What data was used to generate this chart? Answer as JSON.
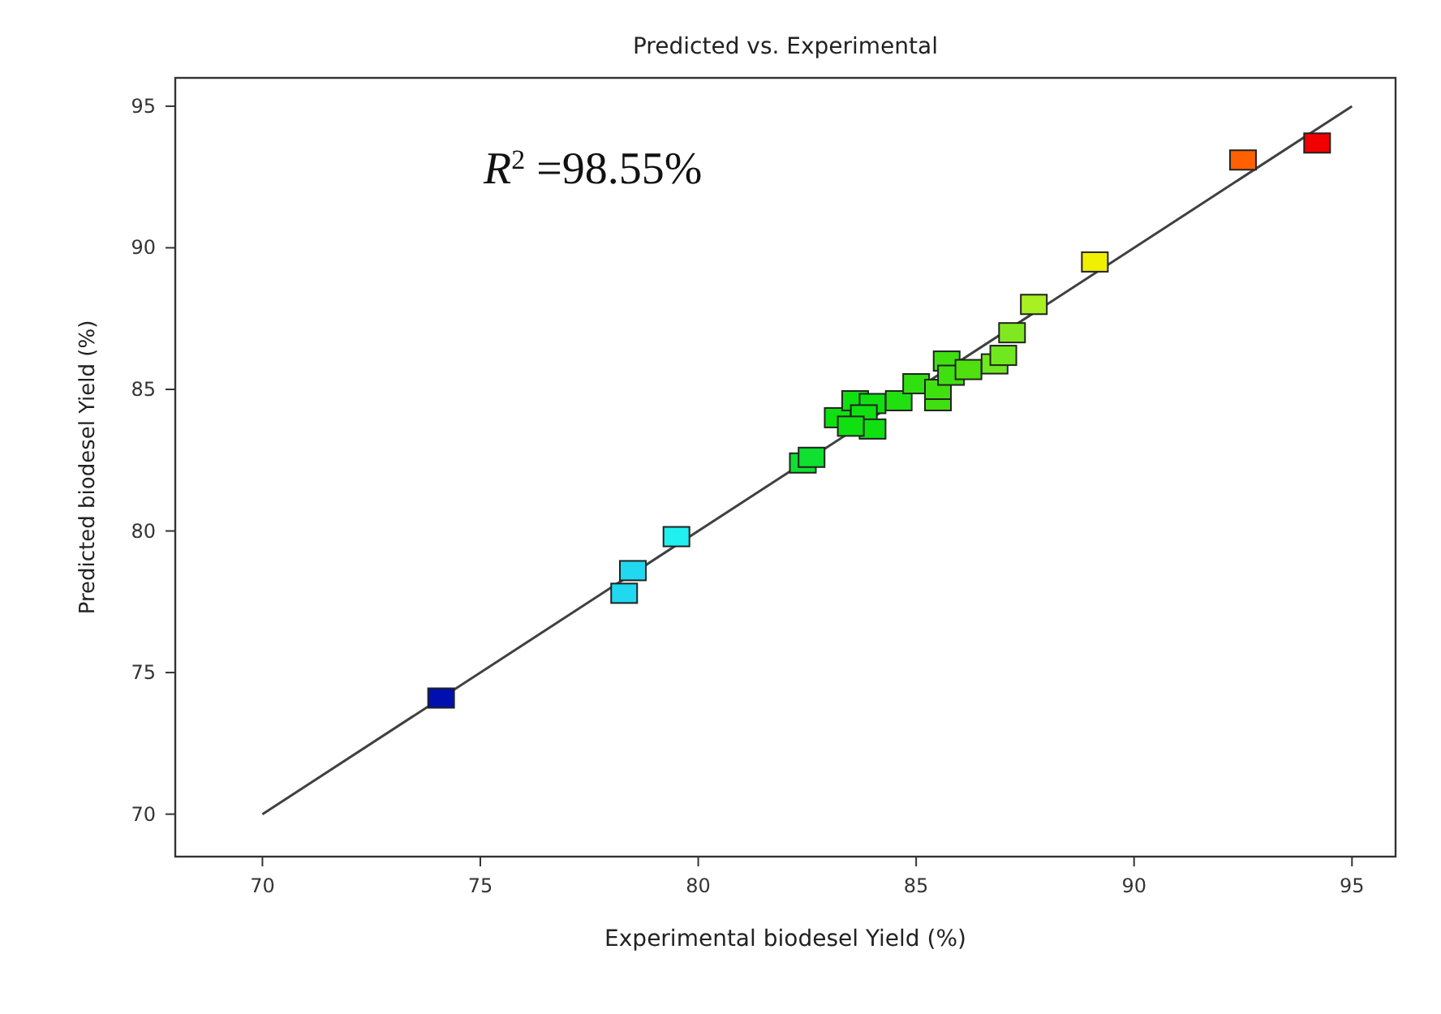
{
  "chart_data": {
    "type": "scatter",
    "title": "Predicted vs. Experimental",
    "xlabel": "Experimental biodesel Yield (%)",
    "ylabel": "Predicted biodesel Yield (%)",
    "annotations": [
      "R$^{2}$ =98.55%"
    ],
    "xlim": [
      68,
      96
    ],
    "ylim": [
      68.5,
      96
    ],
    "xticks": [
      70,
      75,
      80,
      85,
      90,
      95
    ],
    "yticks": [
      70,
      75,
      80,
      85,
      90,
      95
    ],
    "grid": false,
    "marker": "square",
    "series": [
      {
        "type": "line",
        "color": "#404040",
        "x": [
          70,
          95
        ],
        "values": [
          70,
          95
        ],
        "marker": "none",
        "line_style": "solid"
      },
      {
        "x": [
          74.1,
          78.3,
          78.5,
          79.5,
          82.4,
          82.6,
          83.2,
          83.6,
          84.0,
          83.8,
          84.0,
          83.5,
          84.6,
          85.0,
          85.5,
          85.5,
          85.7,
          85.8,
          86.2,
          86.8,
          87.0,
          87.2,
          87.7,
          89.1,
          92.5,
          94.2
        ],
        "values": [
          74.1,
          77.8,
          78.6,
          79.8,
          82.4,
          82.6,
          84.0,
          84.6,
          84.5,
          84.1,
          83.6,
          83.7,
          84.6,
          85.2,
          84.6,
          85.0,
          86.0,
          85.5,
          85.7,
          85.9,
          86.2,
          87.0,
          88.0,
          89.5,
          93.1,
          93.7
        ],
        "colors": [
          "#0010b0",
          "#20d8f0",
          "#20d8f0",
          "#20f0f0",
          "#10e030",
          "#10e030",
          "#10e010",
          "#10e010",
          "#10e010",
          "#10e010",
          "#10e010",
          "#10e010",
          "#20e010",
          "#30e010",
          "#40e010",
          "#40e010",
          "#40e010",
          "#40e010",
          "#50e010",
          "#70e820",
          "#70e820",
          "#80e820",
          "#a8f020",
          "#f0f000",
          "#ff6000",
          "#f00000"
        ]
      }
    ]
  }
}
